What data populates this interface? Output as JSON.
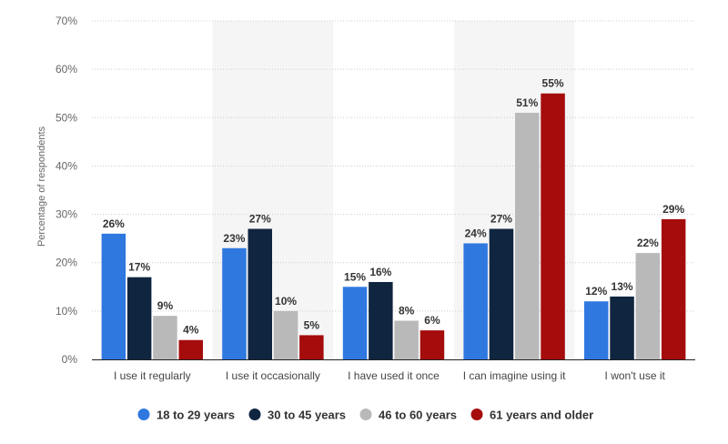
{
  "chart_data": {
    "type": "bar",
    "title": "",
    "xlabel": "",
    "ylabel": "Percentage of respondents",
    "ylim": [
      0,
      70
    ],
    "yticks": [
      0,
      10,
      20,
      30,
      40,
      50,
      60,
      70
    ],
    "ytick_labels": [
      "0%",
      "10%",
      "20%",
      "30%",
      "40%",
      "50%",
      "60%",
      "70%"
    ],
    "grid": true,
    "legend_position": "bottom-center",
    "categories": [
      "I use it regularly",
      "I use it occasionally",
      "I have used it once",
      "I can imagine using it",
      "I won't use it"
    ],
    "shaded_categories": [
      1,
      3
    ],
    "series": [
      {
        "name": "18 to 29 years",
        "color": "#2f78e0",
        "values": [
          26,
          23,
          15,
          24,
          12
        ],
        "labels": [
          "26%",
          "23%",
          "15%",
          "24%",
          "12%"
        ]
      },
      {
        "name": "30 to 45 years",
        "color": "#10253f",
        "values": [
          17,
          27,
          16,
          27,
          13
        ],
        "labels": [
          "17%",
          "27%",
          "16%",
          "27%",
          "13%"
        ]
      },
      {
        "name": "46 to 60 years",
        "color": "#b9b9b9",
        "values": [
          9,
          10,
          8,
          51,
          22
        ],
        "labels": [
          "9%",
          "10%",
          "8%",
          "51%",
          "22%"
        ]
      },
      {
        "name": "61 years and older",
        "color": "#a50c0c",
        "values": [
          4,
          5,
          6,
          55,
          29
        ],
        "labels": [
          "4%",
          "5%",
          "6%",
          "55%",
          "29%"
        ]
      }
    ]
  }
}
